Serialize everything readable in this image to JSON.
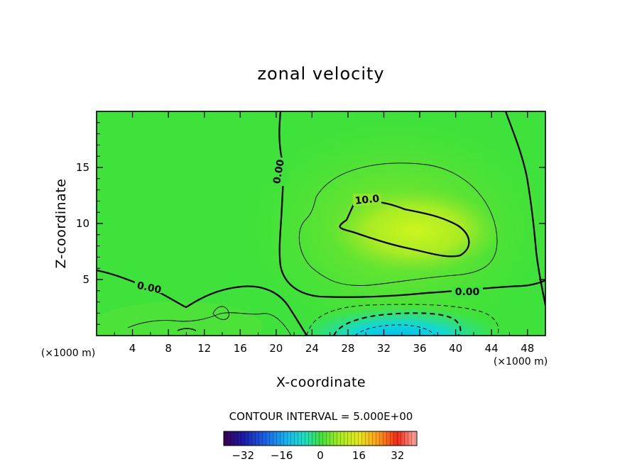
{
  "chart_data": {
    "type": "contour",
    "title": "zonal velocity",
    "xlabel": "X-coordinate",
    "ylabel": "Z-coordinate",
    "x_unit": "(×1000 m)",
    "y_unit": "(×1000 m)",
    "xlim": [
      0,
      50
    ],
    "ylim": [
      0,
      20
    ],
    "x_ticks": [
      "4",
      "8",
      "12",
      "16",
      "20",
      "24",
      "28",
      "32",
      "36",
      "40",
      "44",
      "48"
    ],
    "y_ticks": [
      "5",
      "10",
      "15"
    ],
    "contour_interval_text": "CONTOUR INTERVAL =  5.000E+00",
    "contour_labels": [
      {
        "text": "0.00",
        "x": 20.3,
        "z": 14.5
      },
      {
        "text": "0.00",
        "x": 6.0,
        "z": 4.2
      },
      {
        "text": "0.00",
        "x": 41.5,
        "z": 3.8
      },
      {
        "text": "10.0",
        "x": 30.0,
        "z": 12.0
      }
    ],
    "colorbar": {
      "range": [
        -40,
        40
      ],
      "tick_labels": [
        "-32",
        "-16",
        "0",
        "16",
        "32"
      ]
    },
    "features": [
      {
        "name": "positive jet core",
        "x": 34,
        "z": 9.5,
        "value": 12
      },
      {
        "name": "negative jet core",
        "x": 32,
        "z": 0.2,
        "value": -20
      }
    ]
  }
}
